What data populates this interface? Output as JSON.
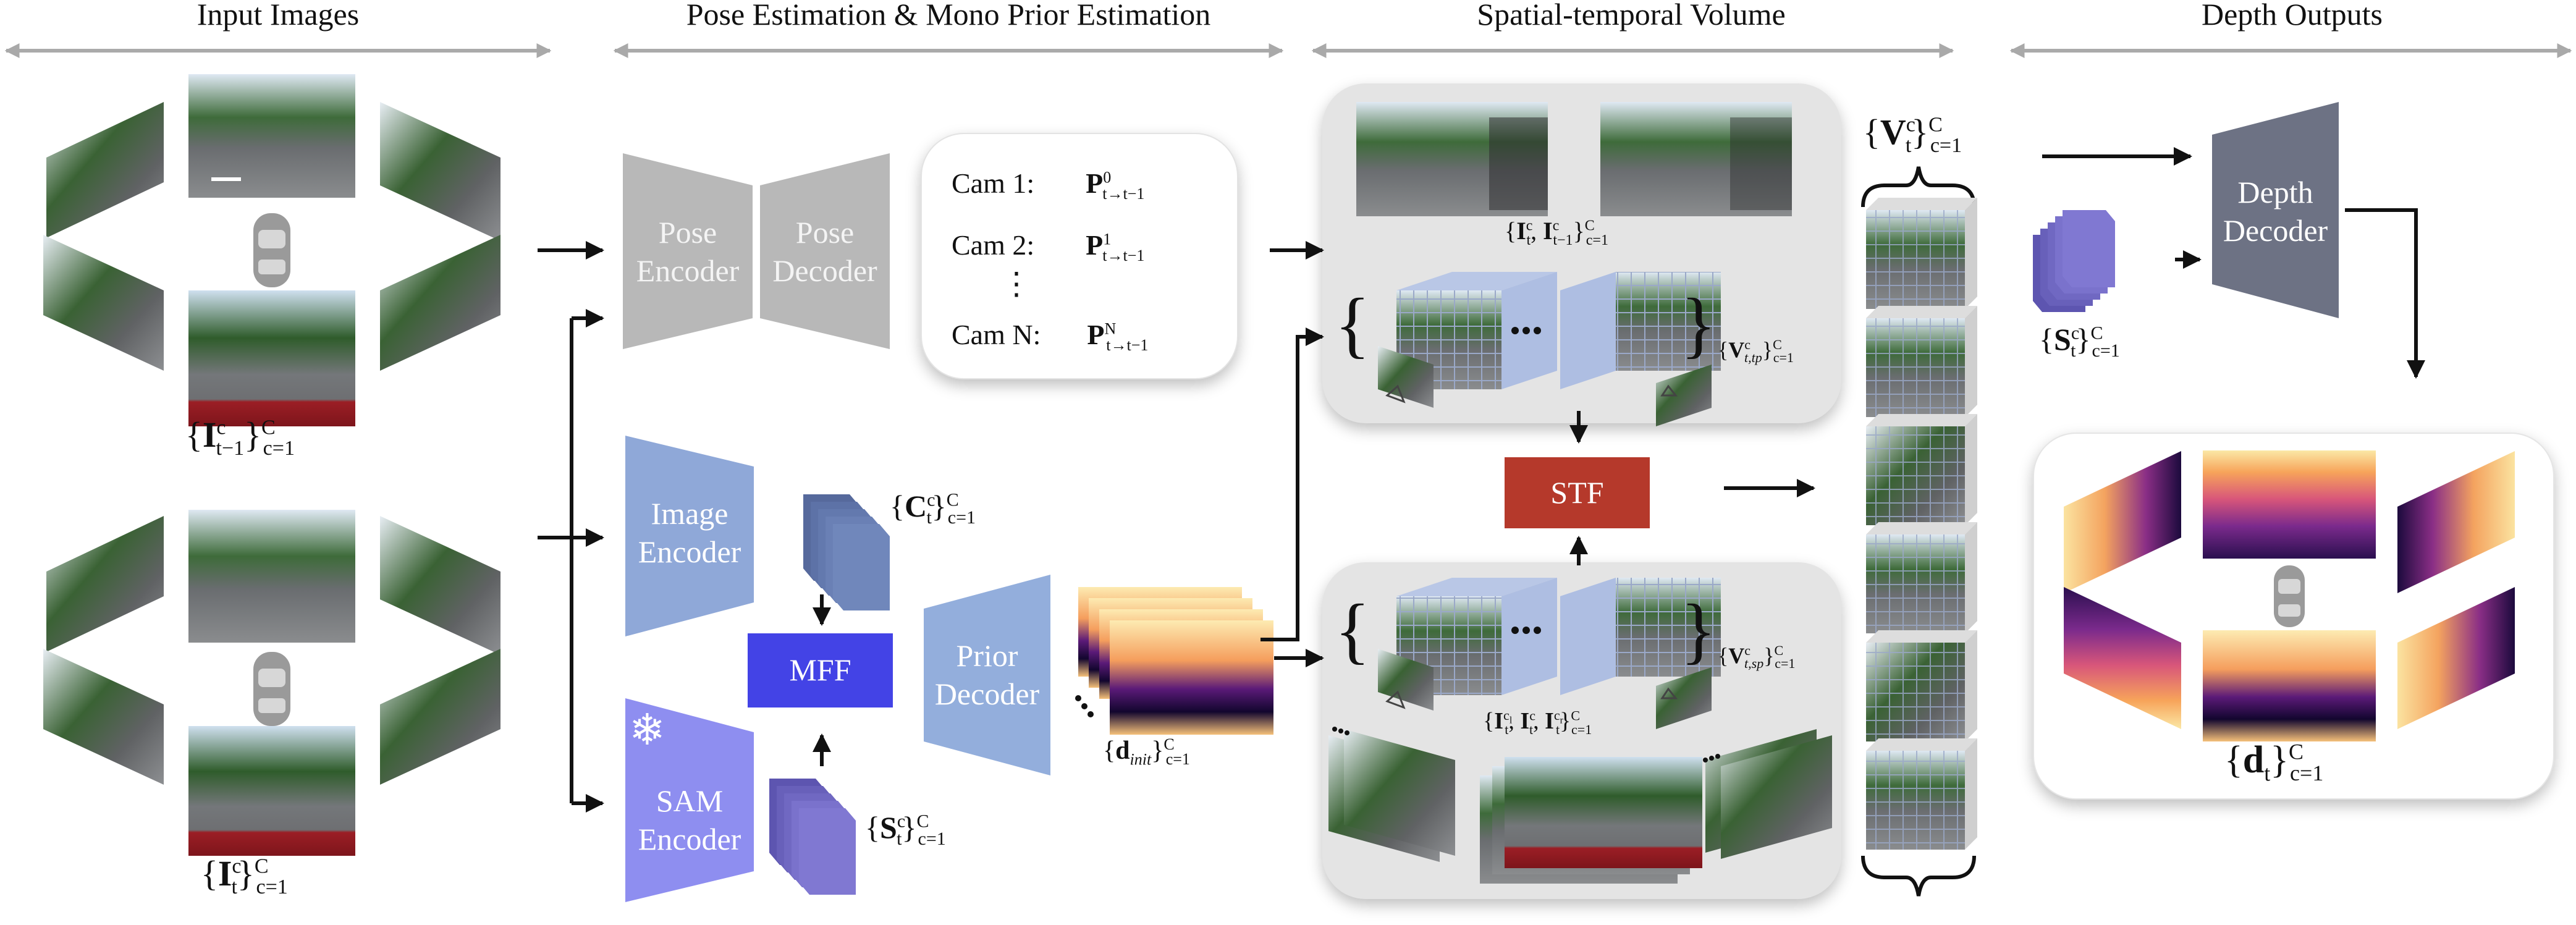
{
  "headers": {
    "input": "Input Images",
    "pose": "Pose Estimation & Mono Prior Estimation",
    "volume": "Spatial-temporal Volume",
    "depth": "Depth Outputs"
  },
  "pose_encoder": [
    "Pose",
    "Encoder"
  ],
  "pose_decoder": [
    "Pose",
    "Decoder"
  ],
  "cams": [
    {
      "label": "Cam 1:",
      "pose": "P",
      "sup": "0",
      "sub": "t→t−1"
    },
    {
      "label": "Cam 2:",
      "pose": "P",
      "sup": "1",
      "sub": "t→t−1"
    },
    {
      "label": "Cam N:",
      "pose": "P",
      "sup": "N",
      "sub": "t→t−1"
    }
  ],
  "cam_ellipsis": "⋮",
  "image_encoder": [
    "Image",
    "Encoder"
  ],
  "sam_encoder": [
    "SAM",
    "Encoder"
  ],
  "mff": "MFF",
  "prior_decoder": [
    "Prior",
    "Decoder"
  ],
  "stf": "STF",
  "depth_decoder": [
    "Depth",
    "Decoder"
  ],
  "snowflake": "❄",
  "labels": {
    "input_prev": {
      "sym": "I",
      "sup": "c",
      "sub": "t−1",
      "range_sup": "C",
      "range_sub": "c=1"
    },
    "input_curr": {
      "sym": "I",
      "sup": "c",
      "sub": "t",
      "range_sup": "C",
      "range_sub": "c=1"
    },
    "features_c": {
      "sym": "C",
      "sup": "c",
      "sub": "t",
      "range_sup": "C",
      "range_sub": "c=1"
    },
    "features_s": {
      "sym": "S",
      "sup": "c",
      "sub": "t",
      "range_sup": "C",
      "range_sub": "c=1"
    },
    "d_init": {
      "sym": "d",
      "sub": "init",
      "range_sup": "C",
      "range_sub": "c=1"
    },
    "pair_temporal": {
      "text": "I",
      "sup1": "c",
      "sub1": "t",
      "sep": ", ",
      "sup2": "c",
      "sub2": "t−1",
      "range_sup": "C",
      "range_sub": "c=1"
    },
    "v_tp": {
      "sym": "V",
      "sup": "c",
      "sub": "t,tp",
      "range_sup": "C",
      "range_sub": "c=1"
    },
    "v_sp": {
      "sym": "V",
      "sup": "c",
      "sub": "t,sp",
      "range_sup": "C",
      "range_sub": "c=1"
    },
    "triple_spatial": {
      "sup1": "c",
      "sup1b": "l",
      "sup2": "c",
      "sup3": "c",
      "sup3b": "r",
      "sub": "t",
      "range_sup": "C",
      "range_sub": "c=1"
    },
    "v_t": {
      "sym": "V",
      "sup": "c",
      "sub": "t",
      "range_sup": "C",
      "range_sub": "c=1"
    },
    "s_t_right": {
      "sym": "S",
      "sup": "c",
      "sub": "t",
      "range_sup": "C",
      "range_sub": "c=1"
    },
    "d_t": {
      "sym": "d",
      "sub": "t",
      "range_sup": "C",
      "range_sub": "c=1"
    }
  },
  "colors": {
    "gray_box": "#b7b7b7",
    "image_encoder": "#8fa8d8",
    "sam_encoder": "#8e8ef0",
    "mff": "#4343e6",
    "prior_decoder": "#93aedc",
    "stf": "#b5392b",
    "depth_decoder": "#6d7284",
    "feature_c": "#6c80b4",
    "feature_s": "#7a72cc",
    "panel": "#e6e6e6"
  }
}
